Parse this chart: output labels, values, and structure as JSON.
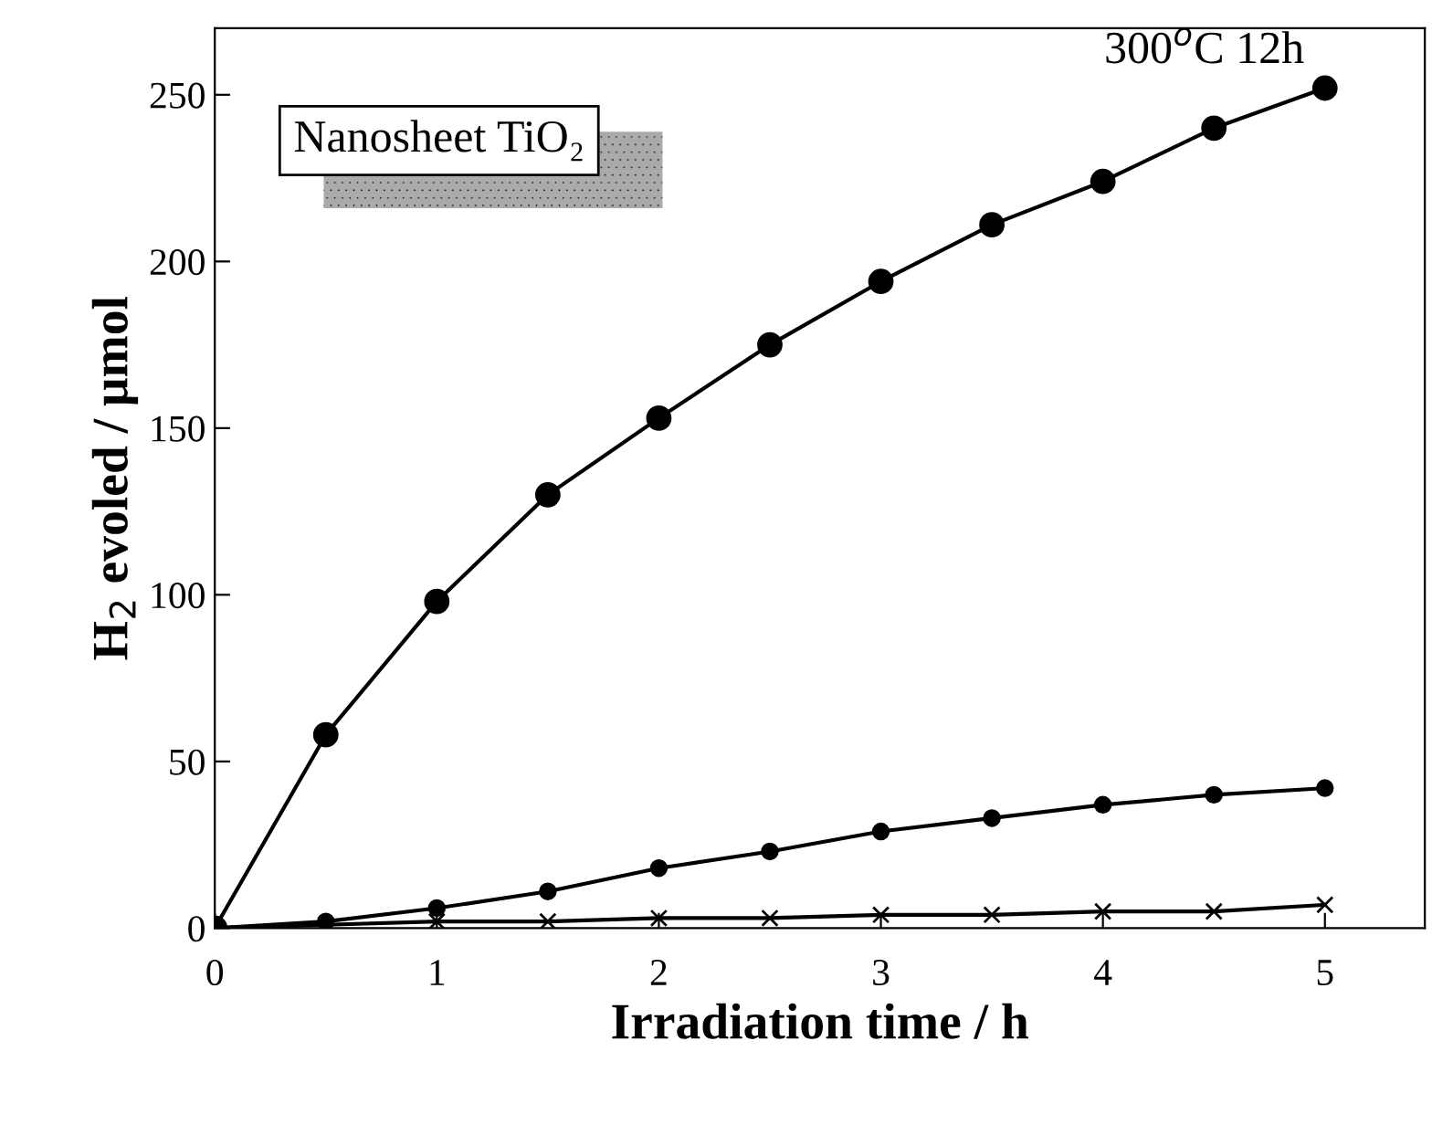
{
  "chart_data": {
    "type": "line",
    "xlabel": "Irradiation time / h",
    "ylabel": "H$_{2}$ evoled / μmol",
    "x": [
      0,
      0.5,
      1,
      1.5,
      2,
      2.5,
      3,
      3.5,
      4,
      4.5,
      5
    ],
    "series": [
      {
        "name": "300$^{o}$C 12h",
        "color": "#000000",
        "marker": "circle",
        "values": [
          0,
          58,
          98,
          130,
          153,
          175,
          194,
          211,
          224,
          240,
          252
        ]
      },
      {
        "color": "#000000",
        "marker": "circle",
        "values": [
          0,
          2,
          6,
          11,
          18,
          23,
          29,
          33,
          37,
          40,
          42
        ]
      },
      {
        "color": "#000000",
        "marker": "cross",
        "values": [
          0,
          1,
          2,
          2,
          3,
          3,
          4,
          4,
          5,
          5,
          7
        ]
      }
    ],
    "annotations": [
      "Nanosheet TiO₂"
    ],
    "xlim": [
      0,
      5.45
    ],
    "xticks": [
      0,
      1,
      2,
      3,
      4,
      5
    ],
    "ylim": [
      0,
      270
    ],
    "yticks": [
      0,
      50,
      100,
      150,
      200,
      250
    ],
    "grid": false,
    "legend": false,
    "line_style": "solid"
  }
}
